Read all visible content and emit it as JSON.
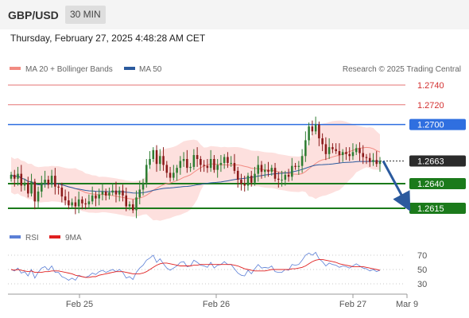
{
  "header": {
    "symbol": "GBP/USD",
    "timeframe": "30 MIN"
  },
  "datetime": "Thursday, February 27, 2025 4:48:28 AM CET",
  "watermark": "Research © 2025 Trading Central",
  "legend": [
    {
      "label": "MA 20 + Bollinger Bands",
      "color": "#f28b82"
    },
    {
      "label": "MA 50",
      "color": "#2b5a9e"
    }
  ],
  "rsi_legend": [
    {
      "label": "RSI",
      "color": "#5b7fd6"
    },
    {
      "label": "9MA",
      "color": "#e02020"
    }
  ],
  "price_levels": [
    {
      "value": 1.274,
      "label": "1.2740",
      "style": "resistance-light"
    },
    {
      "value": 1.272,
      "label": "1.2720",
      "style": "resistance-light"
    },
    {
      "value": 1.27,
      "label": "1.2700",
      "style": "pivot-blue"
    },
    {
      "value": 1.2663,
      "label": "1.2663",
      "style": "current"
    },
    {
      "value": 1.264,
      "label": "1.2640",
      "style": "support-green"
    },
    {
      "value": 1.2615,
      "label": "1.2615",
      "style": "support-green"
    }
  ],
  "rsi_ticks": [
    "70",
    "50",
    "30"
  ],
  "x_labels": [
    "Feb 25",
    "Feb 26",
    "Feb 27",
    "Mar 9"
  ],
  "colors": {
    "up": "#2e7d32",
    "down": "#8b1a1a",
    "band_fill": "#fde0de",
    "ma20": "#f28b82",
    "ma50": "#2b5a9e",
    "arrow": "#2b5a9e"
  },
  "chart_data": [
    {
      "type": "candlestick",
      "title": "GBP/USD 30 MIN",
      "x_ticks": [
        "Feb 25",
        "Feb 26",
        "Feb 27",
        "Mar 9"
      ],
      "y_ticks": [
        1.274,
        1.272,
        1.27,
        1.2663,
        1.264,
        1.2615
      ],
      "ylim": [
        1.2605,
        1.2745
      ],
      "closes": [
        1.2649,
        1.2645,
        1.265,
        1.2638,
        1.2641,
        1.263,
        1.2642,
        1.2622,
        1.2632,
        1.2641,
        1.2644,
        1.2639,
        1.2648,
        1.2637,
        1.2636,
        1.2627,
        1.2623,
        1.2618,
        1.2621,
        1.2617,
        1.2624,
        1.262,
        1.2619,
        1.2622,
        1.2628,
        1.2625,
        1.2629,
        1.2632,
        1.2628,
        1.2631,
        1.2633,
        1.2629,
        1.2633,
        1.2628,
        1.2617,
        1.2619,
        1.2613,
        1.2626,
        1.2634,
        1.2641,
        1.2659,
        1.2665,
        1.2674,
        1.266,
        1.2668,
        1.2659,
        1.2651,
        1.2646,
        1.2651,
        1.2656,
        1.2663,
        1.2665,
        1.2656,
        1.2657,
        1.2669,
        1.2665,
        1.2659,
        1.2658,
        1.2656,
        1.2665,
        1.2654,
        1.2659,
        1.2661,
        1.2667,
        1.2661,
        1.2661,
        1.2653,
        1.2644,
        1.264,
        1.2638,
        1.2648,
        1.2641,
        1.265,
        1.2659,
        1.2652,
        1.2654,
        1.2652,
        1.2656,
        1.2645,
        1.2644,
        1.2644,
        1.2649,
        1.2647,
        1.2658,
        1.2657,
        1.2658,
        1.2668,
        1.2684,
        1.2698,
        1.2693,
        1.27,
        1.2686,
        1.268,
        1.267,
        1.2677,
        1.2675,
        1.2673,
        1.2669,
        1.2672,
        1.267,
        1.2668,
        1.2672,
        1.2676,
        1.2671,
        1.2667,
        1.2666,
        1.2662,
        1.2664,
        1.266,
        1.2663
      ],
      "ma20_end": 1.2668,
      "ma50_end": 1.2665,
      "forecast": {
        "from": 1.2663,
        "to": 1.2615
      }
    },
    {
      "type": "line",
      "title": "RSI",
      "ylim": [
        25,
        75
      ],
      "y_ticks": [
        70,
        50,
        30
      ],
      "series": [
        {
          "name": "RSI",
          "values": [
            50,
            48,
            52,
            45,
            47,
            41,
            50,
            38,
            46,
            52,
            54,
            49,
            55,
            46,
            46,
            40,
            38,
            35,
            38,
            35,
            42,
            40,
            39,
            41,
            45,
            43,
            47,
            49,
            46,
            48,
            50,
            47,
            50,
            46,
            38,
            40,
            36,
            46,
            52,
            56,
            63,
            66,
            70,
            60,
            65,
            58,
            52,
            49,
            52,
            55,
            60,
            61,
            54,
            55,
            63,
            60,
            56,
            55,
            53,
            60,
            52,
            56,
            57,
            61,
            57,
            57,
            51,
            45,
            42,
            41,
            49,
            44,
            51,
            57,
            52,
            53,
            52,
            55,
            47,
            46,
            46,
            50,
            49,
            57,
            56,
            57,
            63,
            70,
            73,
            70,
            74,
            65,
            61,
            55,
            59,
            57,
            56,
            53,
            55,
            54,
            52,
            55,
            58,
            55,
            52,
            51,
            48,
            50,
            47,
            49
          ]
        },
        {
          "name": "9MA",
          "values": [
            50,
            49,
            50,
            49,
            48,
            47,
            48,
            46,
            46,
            46,
            47,
            47,
            48,
            48,
            48,
            47,
            46,
            45,
            44,
            42,
            41,
            40,
            39,
            39,
            40,
            40,
            42,
            43,
            44,
            45,
            46,
            47,
            47,
            47,
            46,
            45,
            44,
            44,
            44,
            45,
            47,
            50,
            53,
            56,
            58,
            59,
            59,
            58,
            57,
            56,
            55,
            55,
            55,
            55,
            56,
            56,
            57,
            57,
            57,
            57,
            57,
            57,
            57,
            57,
            57,
            57,
            56,
            55,
            53,
            51,
            50,
            49,
            48,
            48,
            48,
            48,
            49,
            50,
            50,
            50,
            50,
            50,
            50,
            51,
            51,
            52,
            53,
            55,
            58,
            61,
            63,
            64,
            64,
            63,
            62,
            61,
            60,
            58,
            57,
            56,
            55,
            54,
            54,
            54,
            54,
            53,
            52,
            51,
            50,
            49
          ]
        }
      ]
    }
  ]
}
